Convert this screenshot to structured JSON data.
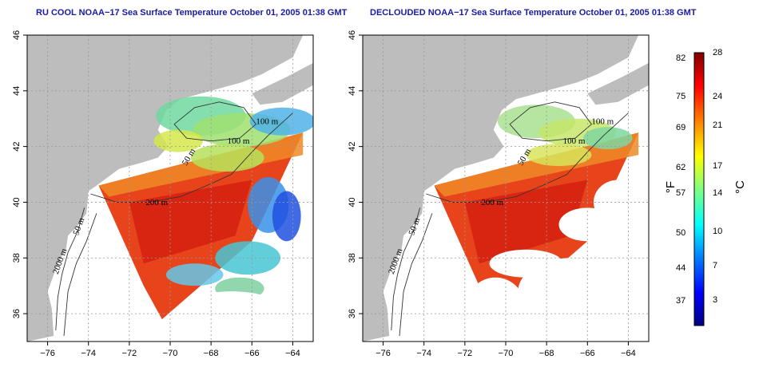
{
  "panels": [
    {
      "title": "RU COOL NOAA−17 Sea Surface Temperature October 01, 2005 01:38 GMT",
      "variant": "full"
    },
    {
      "title": "DECLOUDED NOAA−17 Sea Surface Temperature October 01, 2005 01:38 GMT",
      "variant": "declouded"
    }
  ],
  "axes": {
    "lat_ticks": [
      "46",
      "44",
      "42",
      "40",
      "38",
      "36"
    ],
    "lon_ticks": [
      "−76",
      "−74",
      "−72",
      "−70",
      "−68",
      "−66",
      "−64"
    ],
    "lat_range": [
      35,
      46
    ],
    "lon_range": [
      -77,
      -63
    ]
  },
  "contour_labels": [
    "100 m",
    "100 m",
    "50 m",
    "200 m",
    "50 m",
    "2000 m"
  ],
  "colorbar": {
    "fahrenheit_ticks": [
      "82",
      "75",
      "69",
      "62",
      "57",
      "50",
      "44",
      "37"
    ],
    "celsius_ticks": [
      "28",
      "24",
      "21",
      "17",
      "14",
      "10",
      "7",
      "3"
    ],
    "unit_f": "°F",
    "unit_c": "°C",
    "colors": [
      "#000080",
      "#0000ff",
      "#0080ff",
      "#00ffff",
      "#80ff80",
      "#ffff00",
      "#ff8000",
      "#ff0000",
      "#800000"
    ]
  }
}
